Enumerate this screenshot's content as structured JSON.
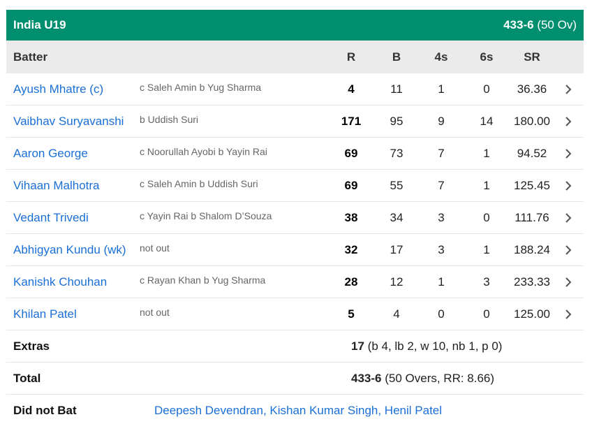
{
  "header": {
    "team": "India U19",
    "score": "433-6",
    "overs": "(50 Ov)",
    "color": "#008f6e"
  },
  "columns": {
    "batter": "Batter",
    "r": "R",
    "b": "B",
    "fours": "4s",
    "sixes": "6s",
    "sr": "SR"
  },
  "batters": [
    {
      "name": "Ayush Mhatre (c)",
      "dismissal": "c Saleh Amin b Yug Sharma",
      "r": "4",
      "b": "11",
      "fours": "1",
      "sixes": "0",
      "sr": "36.36"
    },
    {
      "name": "Vaibhav Suryavanshi",
      "dismissal": "b Uddish Suri",
      "r": "171",
      "b": "95",
      "fours": "9",
      "sixes": "14",
      "sr": "180.00"
    },
    {
      "name": "Aaron George",
      "dismissal": "c Noorullah Ayobi b Yayin Rai",
      "r": "69",
      "b": "73",
      "fours": "7",
      "sixes": "1",
      "sr": "94.52"
    },
    {
      "name": "Vihaan Malhotra",
      "dismissal": "c Saleh Amin b Uddish Suri",
      "r": "69",
      "b": "55",
      "fours": "7",
      "sixes": "1",
      "sr": "125.45"
    },
    {
      "name": "Vedant Trivedi",
      "dismissal": "c Yayin Rai b Shalom D’Souza",
      "r": "38",
      "b": "34",
      "fours": "3",
      "sixes": "0",
      "sr": "111.76"
    },
    {
      "name": "Abhigyan Kundu (wk)",
      "dismissal": "not out",
      "r": "32",
      "b": "17",
      "fours": "3",
      "sixes": "1",
      "sr": "188.24"
    },
    {
      "name": "Kanishk Chouhan",
      "dismissal": "c Rayan Khan b Yug Sharma",
      "r": "28",
      "b": "12",
      "fours": "1",
      "sixes": "3",
      "sr": "233.33"
    },
    {
      "name": "Khilan Patel",
      "dismissal": "not out",
      "r": "5",
      "b": "4",
      "fours": "0",
      "sixes": "0",
      "sr": "125.00"
    }
  ],
  "extras": {
    "label": "Extras",
    "total": "17",
    "detail": "(b 4, lb 2, w 10, nb 1, p 0)"
  },
  "total": {
    "label": "Total",
    "score": "433-6",
    "detail": "(50 Overs, RR: 8.66)"
  },
  "did_not_bat": {
    "label": "Did not Bat",
    "players": "Deepesh Devendran, Kishan Kumar Singh, Henil Patel"
  }
}
